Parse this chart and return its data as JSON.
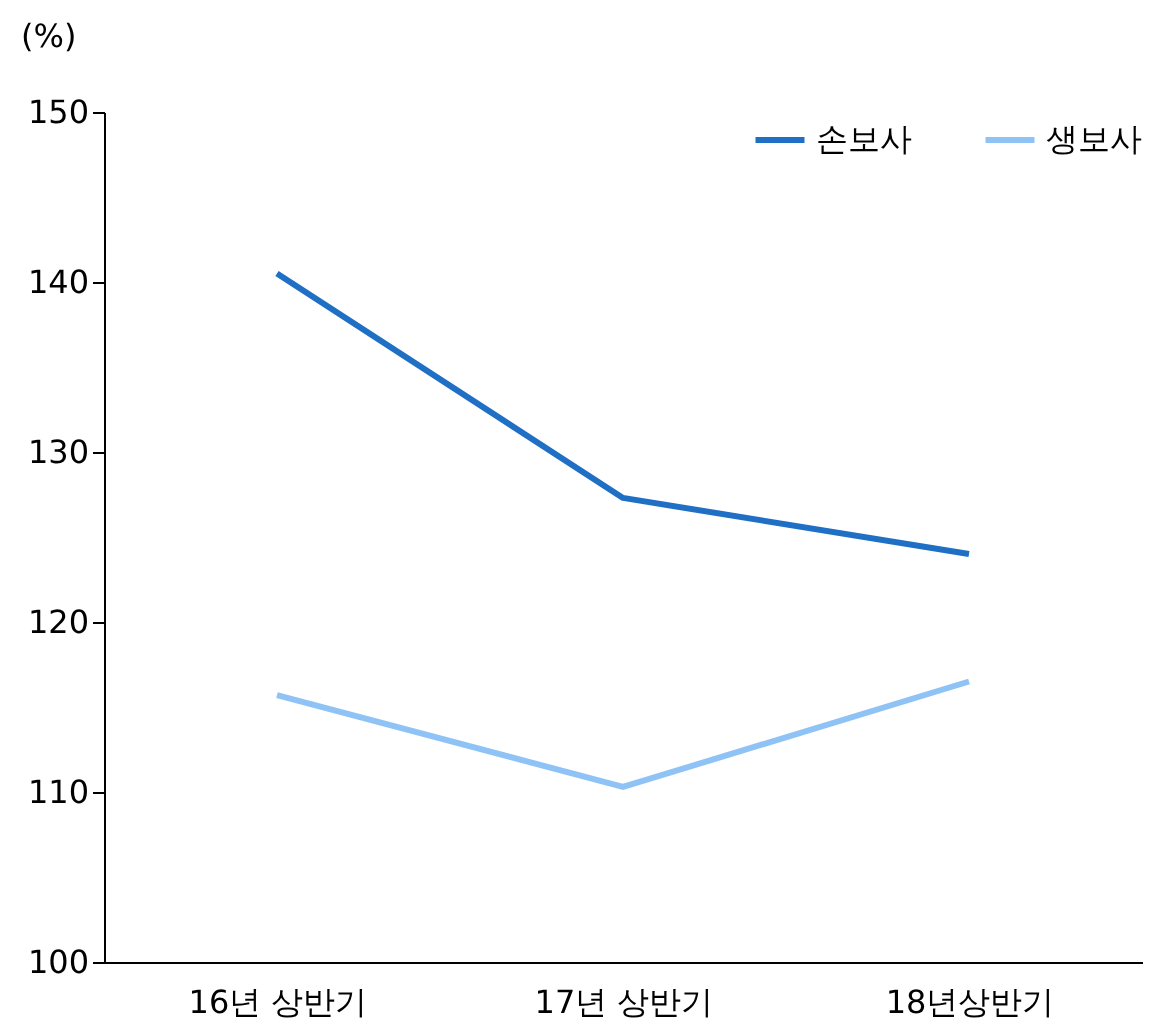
{
  "chart_data": {
    "type": "line",
    "ylabel": "(%)",
    "categories": [
      "16년 상반기",
      "17년 상반기",
      "18년상반기"
    ],
    "series": [
      {
        "name": "손보사",
        "color": "#1f6fc5",
        "values": [
          140.5,
          127.3,
          124
        ]
      },
      {
        "name": "생보사",
        "color": "#90c3f5",
        "values": [
          115.7,
          110.3,
          116.5
        ]
      }
    ],
    "ylim": [
      100,
      150
    ],
    "yticks": [
      100,
      110,
      120,
      130,
      140,
      150
    ],
    "grid": false,
    "legend": "top right",
    "marker": "none",
    "line_style": "solid"
  }
}
